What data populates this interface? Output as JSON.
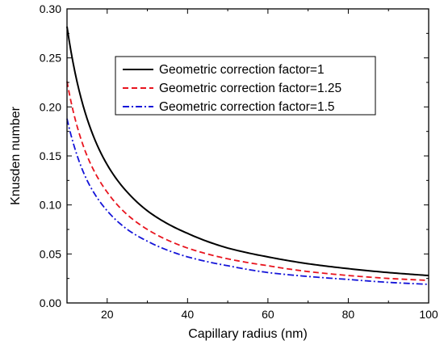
{
  "chart_data": {
    "type": "line",
    "title": "",
    "xlabel": "Capillary radius (nm)",
    "ylabel": "Knusden number",
    "xlim": [
      10,
      100
    ],
    "ylim": [
      0,
      0.3
    ],
    "xticks": [
      20,
      40,
      60,
      80,
      100
    ],
    "xtick_labels": [
      "20",
      "40",
      "60",
      "80",
      "100"
    ],
    "yticks": [
      0.0,
      0.05,
      0.1,
      0.15,
      0.2,
      0.25,
      0.3
    ],
    "ytick_labels": [
      "0.00",
      "0.05",
      "0.10",
      "0.15",
      "0.20",
      "0.25",
      "0.30"
    ],
    "grid": false,
    "legend_position": "top-right",
    "x": [
      10,
      12,
      15,
      20,
      25,
      30,
      40,
      50,
      60,
      70,
      80,
      90,
      100
    ],
    "series": [
      {
        "name": "Geometric correction factor=1",
        "color": "#000000",
        "style": "solid",
        "values": [
          0.282,
          0.235,
          0.188,
          0.141,
          0.113,
          0.094,
          0.071,
          0.056,
          0.047,
          0.04,
          0.035,
          0.031,
          0.028
        ]
      },
      {
        "name": "Geometric correction factor=1.25",
        "color": "#e8141e",
        "style": "dash",
        "values": [
          0.226,
          0.188,
          0.15,
          0.113,
          0.09,
          0.075,
          0.056,
          0.045,
          0.038,
          0.032,
          0.028,
          0.025,
          0.023
        ]
      },
      {
        "name": "Geometric correction factor=1.5",
        "color": "#1414d8",
        "style": "dashdot",
        "values": [
          0.188,
          0.157,
          0.125,
          0.094,
          0.075,
          0.063,
          0.047,
          0.038,
          0.031,
          0.027,
          0.024,
          0.021,
          0.019
        ]
      }
    ]
  }
}
